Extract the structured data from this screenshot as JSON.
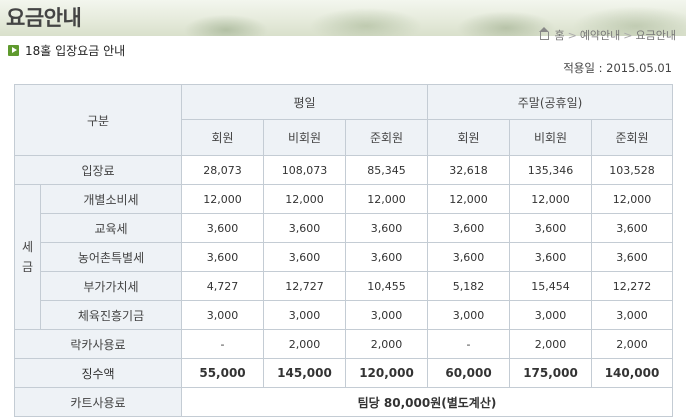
{
  "header": {
    "title": "요금안내",
    "breadcrumb": [
      "홈",
      "예약안내",
      "요금안내"
    ]
  },
  "section": {
    "title": "18홀 입장요금 안내",
    "effective_date": "적용일 : 2015.05.01"
  },
  "table": {
    "category_label": "구분",
    "groups": [
      "평일",
      "주말(공휴일)"
    ],
    "subheaders": [
      "회원",
      "비회원",
      "준회원",
      "회원",
      "비회원",
      "준회원"
    ],
    "admission": {
      "label": "입장료",
      "values": [
        "28,073",
        "108,073",
        "85,345",
        "32,618",
        "135,346",
        "103,528"
      ]
    },
    "tax_group_label": "세\n금",
    "taxes": [
      {
        "label": "개별소비세",
        "values": [
          "12,000",
          "12,000",
          "12,000",
          "12,000",
          "12,000",
          "12,000"
        ]
      },
      {
        "label": "교육세",
        "values": [
          "3,600",
          "3,600",
          "3,600",
          "3,600",
          "3,600",
          "3,600"
        ]
      },
      {
        "label": "농어촌특별세",
        "values": [
          "3,600",
          "3,600",
          "3,600",
          "3,600",
          "3,600",
          "3,600"
        ]
      },
      {
        "label": "부가가치세",
        "values": [
          "4,727",
          "12,727",
          "10,455",
          "5,182",
          "15,454",
          "12,272"
        ]
      },
      {
        "label": "체육진흥기금",
        "values": [
          "3,000",
          "3,000",
          "3,000",
          "3,000",
          "3,000",
          "3,000"
        ]
      }
    ],
    "locker": {
      "label": "락카사용료",
      "values": [
        "-",
        "2,000",
        "2,000",
        "-",
        "2,000",
        "2,000"
      ]
    },
    "total": {
      "label": "징수액",
      "values": [
        "55,000",
        "145,000",
        "120,000",
        "60,000",
        "175,000",
        "140,000"
      ]
    },
    "cart": {
      "label": "카트사용료",
      "note": "팀당 80,000원(별도계산)"
    }
  }
}
